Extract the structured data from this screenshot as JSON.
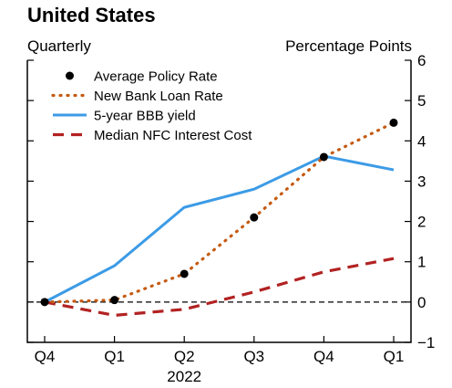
{
  "chart_data": {
    "type": "line",
    "title": "United States",
    "subtitle_left": "Quarterly",
    "subtitle_right": "Percentage Points",
    "categories": [
      "Q4",
      "Q1",
      "Q2",
      "Q3",
      "Q4",
      "Q1"
    ],
    "year_label": "2022",
    "ylim": [
      -1,
      6
    ],
    "yticks": [
      -1,
      0,
      1,
      2,
      3,
      4,
      5,
      6
    ],
    "legend_position": "top-left",
    "series": [
      {
        "name": "Average Policy Rate",
        "style": "markers",
        "color": "#000000",
        "values": [
          0.0,
          0.05,
          0.7,
          2.1,
          3.6,
          4.45
        ]
      },
      {
        "name": "New Bank Loan Rate",
        "style": "dotted",
        "color": "#c55a11",
        "values": [
          0.0,
          0.05,
          0.7,
          2.1,
          3.6,
          4.45
        ]
      },
      {
        "name": "5-year BBB yield",
        "style": "solid",
        "color": "#3c9be6",
        "values": [
          0.0,
          0.9,
          2.35,
          2.8,
          3.62,
          3.28
        ]
      },
      {
        "name": "Median NFC Interest Cost",
        "style": "dashed",
        "color": "#b22222",
        "values": [
          0.0,
          -0.33,
          -0.18,
          0.25,
          0.75,
          1.08
        ]
      }
    ],
    "zero_line": true
  }
}
